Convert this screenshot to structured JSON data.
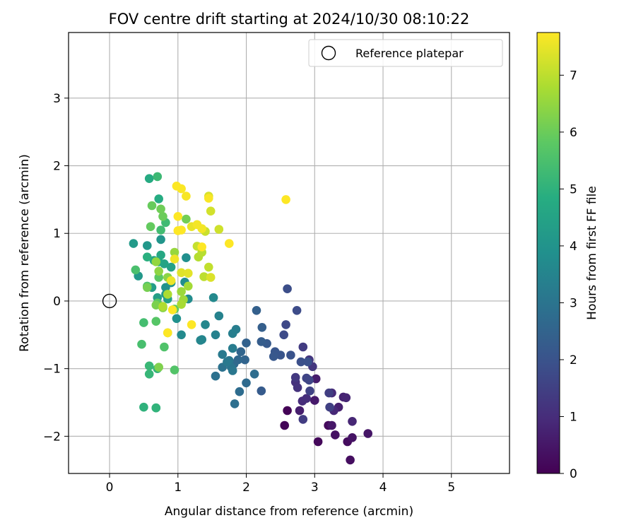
{
  "chart_data": {
    "type": "scatter",
    "title": "FOV centre drift starting at 2024/10/30 08:10:22",
    "xlabel": "Angular distance from reference (arcmin)",
    "ylabel": "Rotation from reference (arcmin)",
    "xlim": [
      -0.6,
      5.85
    ],
    "ylim": [
      -2.55,
      3.97
    ],
    "xticks": [
      0,
      1,
      2,
      3,
      4,
      5
    ],
    "yticks": [
      -2,
      -1,
      0,
      1,
      2,
      3
    ],
    "grid": true,
    "legend": {
      "placement": "top-right",
      "entries": [
        "Reference platepar"
      ]
    },
    "colorbar": {
      "label": "Hours from first FF file",
      "colormap": "viridis",
      "range": [
        0,
        7.75
      ],
      "ticks": [
        0,
        1,
        2,
        3,
        4,
        5,
        6,
        7
      ]
    },
    "reference_point": {
      "x": 0,
      "y": 0,
      "label": "Reference platepar"
    },
    "points": [
      {
        "x": 2.6,
        "y": -1.62,
        "hours": 0.05
      },
      {
        "x": 2.56,
        "y": -1.84,
        "hours": 0.1
      },
      {
        "x": 3.05,
        "y": -2.08,
        "hours": 0.15
      },
      {
        "x": 3.2,
        "y": -1.84,
        "hours": 0.2
      },
      {
        "x": 3.48,
        "y": -2.08,
        "hours": 0.25
      },
      {
        "x": 3.52,
        "y": -2.35,
        "hours": 0.3
      },
      {
        "x": 3.3,
        "y": -1.98,
        "hours": 0.35
      },
      {
        "x": 3.55,
        "y": -2.02,
        "hours": 0.4
      },
      {
        "x": 3.78,
        "y": -1.96,
        "hours": 0.45
      },
      {
        "x": 3.25,
        "y": -1.84,
        "hours": 0.5
      },
      {
        "x": 3.0,
        "y": -1.47,
        "hours": 0.55
      },
      {
        "x": 3.02,
        "y": -1.15,
        "hours": 0.6
      },
      {
        "x": 2.78,
        "y": -1.62,
        "hours": 0.65
      },
      {
        "x": 3.35,
        "y": -1.57,
        "hours": 0.7
      },
      {
        "x": 3.42,
        "y": -1.42,
        "hours": 0.75
      },
      {
        "x": 3.46,
        "y": -1.43,
        "hours": 0.8
      },
      {
        "x": 3.55,
        "y": -1.78,
        "hours": 0.85
      },
      {
        "x": 3.28,
        "y": -1.62,
        "hours": 0.9
      },
      {
        "x": 3.25,
        "y": -1.36,
        "hours": 0.95
      },
      {
        "x": 2.82,
        "y": -1.48,
        "hours": 1.0
      },
      {
        "x": 2.88,
        "y": -1.44,
        "hours": 1.05
      },
      {
        "x": 2.72,
        "y": -1.2,
        "hours": 1.1
      },
      {
        "x": 2.75,
        "y": -1.28,
        "hours": 1.15
      },
      {
        "x": 2.92,
        "y": -0.87,
        "hours": 1.2
      },
      {
        "x": 2.97,
        "y": -0.97,
        "hours": 1.25
      },
      {
        "x": 2.72,
        "y": -1.13,
        "hours": 1.3
      },
      {
        "x": 2.83,
        "y": -0.68,
        "hours": 1.35
      },
      {
        "x": 2.83,
        "y": -1.75,
        "hours": 1.4
      },
      {
        "x": 3.21,
        "y": -1.36,
        "hours": 1.45
      },
      {
        "x": 3.22,
        "y": -1.57,
        "hours": 1.5
      },
      {
        "x": 2.93,
        "y": -1.33,
        "hours": 1.55
      },
      {
        "x": 2.88,
        "y": -1.14,
        "hours": 1.6
      },
      {
        "x": 2.92,
        "y": -1.17,
        "hours": 1.65
      },
      {
        "x": 2.58,
        "y": -0.35,
        "hours": 1.7
      },
      {
        "x": 2.55,
        "y": -0.5,
        "hours": 1.75
      },
      {
        "x": 2.74,
        "y": -0.14,
        "hours": 1.8
      },
      {
        "x": 2.6,
        "y": 0.18,
        "hours": 1.85
      },
      {
        "x": 2.8,
        "y": -0.9,
        "hours": 1.9
      },
      {
        "x": 2.9,
        "y": -0.9,
        "hours": 1.95
      },
      {
        "x": 2.65,
        "y": -0.8,
        "hours": 2.0
      },
      {
        "x": 2.5,
        "y": -0.8,
        "hours": 2.05
      },
      {
        "x": 2.42,
        "y": -0.75,
        "hours": 2.1
      },
      {
        "x": 2.4,
        "y": -0.82,
        "hours": 2.15
      },
      {
        "x": 2.3,
        "y": -0.63,
        "hours": 2.2
      },
      {
        "x": 2.22,
        "y": -1.33,
        "hours": 2.25
      },
      {
        "x": 2.22,
        "y": -0.6,
        "hours": 2.3
      },
      {
        "x": 2.23,
        "y": -0.39,
        "hours": 2.35
      },
      {
        "x": 2.15,
        "y": -0.14,
        "hours": 2.4
      },
      {
        "x": 2.0,
        "y": -0.62,
        "hours": 2.45
      },
      {
        "x": 1.98,
        "y": -0.87,
        "hours": 2.5
      },
      {
        "x": 1.92,
        "y": -0.75,
        "hours": 2.55
      },
      {
        "x": 1.88,
        "y": -0.87,
        "hours": 2.6
      },
      {
        "x": 1.82,
        "y": -0.93,
        "hours": 2.65
      },
      {
        "x": 2.0,
        "y": -1.21,
        "hours": 2.7
      },
      {
        "x": 1.9,
        "y": -1.34,
        "hours": 2.75
      },
      {
        "x": 2.12,
        "y": -1.08,
        "hours": 2.8
      },
      {
        "x": 1.83,
        "y": -1.52,
        "hours": 2.85
      },
      {
        "x": 1.55,
        "y": -1.11,
        "hours": 2.9
      },
      {
        "x": 1.65,
        "y": -0.98,
        "hours": 2.95
      },
      {
        "x": 1.78,
        "y": -0.98,
        "hours": 3.0
      },
      {
        "x": 1.75,
        "y": -0.88,
        "hours": 3.05
      },
      {
        "x": 1.8,
        "y": -1.03,
        "hours": 3.1
      },
      {
        "x": 1.72,
        "y": -0.9,
        "hours": 3.15
      },
      {
        "x": 1.65,
        "y": -0.79,
        "hours": 3.2
      },
      {
        "x": 1.8,
        "y": -0.7,
        "hours": 3.25
      },
      {
        "x": 1.85,
        "y": -0.42,
        "hours": 3.3
      },
      {
        "x": 1.8,
        "y": -0.48,
        "hours": 3.35
      },
      {
        "x": 1.55,
        "y": -0.5,
        "hours": 3.4
      },
      {
        "x": 1.6,
        "y": -0.22,
        "hours": 3.45
      },
      {
        "x": 1.35,
        "y": -0.57,
        "hours": 3.5
      },
      {
        "x": 1.33,
        "y": -0.58,
        "hours": 3.55
      },
      {
        "x": 1.4,
        "y": -0.35,
        "hours": 3.6
      },
      {
        "x": 1.52,
        "y": 0.05,
        "hours": 3.65
      },
      {
        "x": 1.05,
        "y": -0.5,
        "hours": 3.7
      },
      {
        "x": 1.15,
        "y": 0.03,
        "hours": 3.75
      },
      {
        "x": 1.1,
        "y": 0.28,
        "hours": 3.8
      },
      {
        "x": 1.12,
        "y": 0.64,
        "hours": 3.85
      },
      {
        "x": 0.98,
        "y": -0.26,
        "hours": 3.9
      },
      {
        "x": 0.82,
        "y": 0.2,
        "hours": 3.95
      },
      {
        "x": 0.9,
        "y": 0.27,
        "hours": 4.0
      },
      {
        "x": 0.75,
        "y": 0.91,
        "hours": 4.05
      },
      {
        "x": 0.55,
        "y": 0.82,
        "hours": 4.1
      },
      {
        "x": 0.42,
        "y": 0.37,
        "hours": 4.15
      },
      {
        "x": 0.35,
        "y": 0.85,
        "hours": 4.2
      },
      {
        "x": 0.82,
        "y": 0.1,
        "hours": 4.25
      },
      {
        "x": 0.62,
        "y": 0.2,
        "hours": 4.3
      },
      {
        "x": 0.7,
        "y": 0.05,
        "hours": 4.35
      },
      {
        "x": 0.85,
        "y": 0.03,
        "hours": 4.4
      },
      {
        "x": 0.9,
        "y": 0.5,
        "hours": 4.45
      },
      {
        "x": 0.8,
        "y": 0.55,
        "hours": 4.5
      },
      {
        "x": 0.65,
        "y": 0.6,
        "hours": 4.55
      },
      {
        "x": 0.72,
        "y": 0.58,
        "hours": 4.6
      },
      {
        "x": 0.75,
        "y": 0.68,
        "hours": 4.65
      },
      {
        "x": 0.58,
        "y": 1.81,
        "hours": 4.75
      },
      {
        "x": 0.72,
        "y": 1.51,
        "hours": 4.8
      },
      {
        "x": 0.55,
        "y": 0.65,
        "hours": 4.9
      },
      {
        "x": 0.68,
        "y": -1.58,
        "hours": 4.95
      },
      {
        "x": 0.5,
        "y": -1.57,
        "hours": 5.0
      },
      {
        "x": 0.68,
        "y": -1.58,
        "hours": 5.05
      },
      {
        "x": 0.7,
        "y": -1.0,
        "hours": 5.1
      },
      {
        "x": 0.58,
        "y": -1.08,
        "hours": 5.15
      },
      {
        "x": 0.58,
        "y": -0.96,
        "hours": 5.2
      },
      {
        "x": 0.7,
        "y": 1.84,
        "hours": 5.25
      },
      {
        "x": 0.82,
        "y": 1.16,
        "hours": 5.3
      },
      {
        "x": 0.75,
        "y": 1.05,
        "hours": 5.35
      },
      {
        "x": 0.5,
        "y": -0.32,
        "hours": 5.4
      },
      {
        "x": 0.47,
        "y": -0.64,
        "hours": 5.45
      },
      {
        "x": 0.38,
        "y": 0.46,
        "hours": 5.5
      },
      {
        "x": 0.55,
        "y": 0.22,
        "hours": 5.55
      },
      {
        "x": 0.8,
        "y": -0.68,
        "hours": 5.6
      },
      {
        "x": 0.95,
        "y": -1.02,
        "hours": 5.65
      },
      {
        "x": 0.68,
        "y": -0.3,
        "hours": 5.7
      },
      {
        "x": 0.7,
        "y": -0.03,
        "hours": 5.75
      },
      {
        "x": 0.72,
        "y": 0.35,
        "hours": 5.8
      },
      {
        "x": 0.95,
        "y": -0.12,
        "hours": 5.85
      },
      {
        "x": 0.6,
        "y": 1.1,
        "hours": 5.9
      },
      {
        "x": 0.62,
        "y": 1.41,
        "hours": 5.95
      },
      {
        "x": 0.78,
        "y": 1.25,
        "hours": 6.0
      },
      {
        "x": 0.75,
        "y": 1.36,
        "hours": 6.05
      },
      {
        "x": 1.12,
        "y": 1.21,
        "hours": 6.1
      },
      {
        "x": 0.55,
        "y": 0.2,
        "hours": 6.15
      },
      {
        "x": 0.68,
        "y": -0.06,
        "hours": 6.2
      },
      {
        "x": 0.72,
        "y": -0.98,
        "hours": 6.25
      },
      {
        "x": 0.85,
        "y": -0.47,
        "hours": 6.3
      },
      {
        "x": 0.78,
        "y": -0.1,
        "hours": 6.35
      },
      {
        "x": 0.85,
        "y": 0.35,
        "hours": 6.4
      },
      {
        "x": 0.72,
        "y": 0.44,
        "hours": 6.45
      },
      {
        "x": 0.68,
        "y": 0.58,
        "hours": 6.5
      },
      {
        "x": 0.95,
        "y": 0.72,
        "hours": 6.55
      },
      {
        "x": 1.05,
        "y": 0.14,
        "hours": 6.6
      },
      {
        "x": 1.08,
        "y": 0.02,
        "hours": 6.65
      },
      {
        "x": 1.15,
        "y": 0.22,
        "hours": 6.7
      },
      {
        "x": 1.05,
        "y": -0.05,
        "hours": 6.75
      },
      {
        "x": 0.85,
        "y": 0.1,
        "hours": 6.8
      },
      {
        "x": 0.78,
        "y": -0.08,
        "hours": 6.85
      },
      {
        "x": 1.3,
        "y": 0.65,
        "hours": 6.9
      },
      {
        "x": 1.35,
        "y": 0.72,
        "hours": 6.95
      },
      {
        "x": 1.38,
        "y": 0.36,
        "hours": 7.0
      },
      {
        "x": 1.45,
        "y": 0.5,
        "hours": 7.05
      },
      {
        "x": 1.28,
        "y": 0.81,
        "hours": 7.1
      },
      {
        "x": 1.4,
        "y": 1.03,
        "hours": 7.15
      },
      {
        "x": 1.6,
        "y": 1.06,
        "hours": 7.2
      },
      {
        "x": 1.48,
        "y": 1.33,
        "hours": 7.25
      },
      {
        "x": 1.45,
        "y": 1.55,
        "hours": 7.3
      },
      {
        "x": 1.48,
        "y": 0.35,
        "hours": 7.35
      },
      {
        "x": 1.05,
        "y": 0.42,
        "hours": 7.4
      },
      {
        "x": 1.15,
        "y": 0.41,
        "hours": 7.45
      },
      {
        "x": 1.2,
        "y": 1.1,
        "hours": 7.5
      },
      {
        "x": 0.9,
        "y": 0.3,
        "hours": 7.55
      },
      {
        "x": 0.95,
        "y": 0.62,
        "hours": 7.6
      },
      {
        "x": 1.35,
        "y": 1.07,
        "hours": 7.62
      },
      {
        "x": 1.28,
        "y": 1.13,
        "hours": 7.65
      },
      {
        "x": 1.12,
        "y": 1.55,
        "hours": 7.68
      },
      {
        "x": 1.45,
        "y": 1.52,
        "hours": 7.7
      },
      {
        "x": 1.05,
        "y": 1.66,
        "hours": 7.72
      },
      {
        "x": 0.98,
        "y": 1.7,
        "hours": 7.74
      },
      {
        "x": 1.0,
        "y": 1.25,
        "hours": 7.75
      },
      {
        "x": 1.05,
        "y": 1.05,
        "hours": 7.75
      },
      {
        "x": 1.0,
        "y": 1.04,
        "hours": 7.75
      },
      {
        "x": 1.75,
        "y": 0.85,
        "hours": 7.75
      },
      {
        "x": 2.58,
        "y": 1.5,
        "hours": 7.75
      },
      {
        "x": 0.85,
        "y": -0.47,
        "hours": 7.75
      },
      {
        "x": 1.2,
        "y": -0.35,
        "hours": 7.75
      },
      {
        "x": 0.92,
        "y": -0.13,
        "hours": 7.75
      },
      {
        "x": 1.35,
        "y": 0.8,
        "hours": 7.75
      }
    ]
  }
}
